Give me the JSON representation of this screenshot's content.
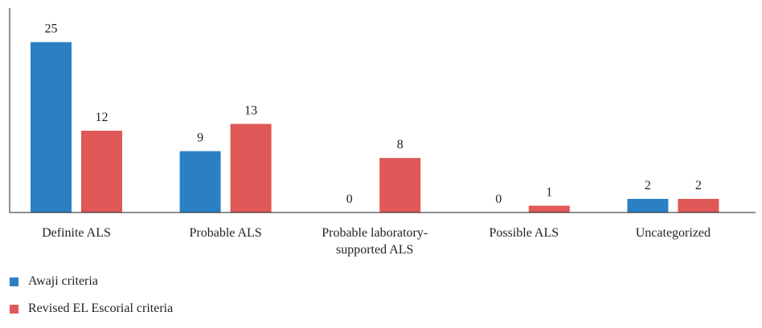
{
  "chart_data": {
    "type": "bar",
    "categories": [
      "Definite ALS",
      "Probable ALS",
      "Probable laboratory-supported ALS",
      "Possible ALS",
      "Uncategorized"
    ],
    "category_lines": [
      [
        "Definite ALS"
      ],
      [
        "Probable ALS"
      ],
      [
        "Probable laboratory-",
        "supported ALS"
      ],
      [
        "Possible ALS"
      ],
      [
        "Uncategorized"
      ]
    ],
    "series": [
      {
        "name": "Awaji criteria",
        "color": "#2b80c4",
        "values": [
          25,
          9,
          0,
          0,
          2
        ]
      },
      {
        "name": "Revised EL Escorial criteria",
        "color": "#e05857",
        "values": [
          12,
          13,
          8,
          1,
          2
        ]
      }
    ],
    "ylim": [
      0,
      30
    ],
    "grid": false,
    "legend_position": "bottom-left"
  }
}
